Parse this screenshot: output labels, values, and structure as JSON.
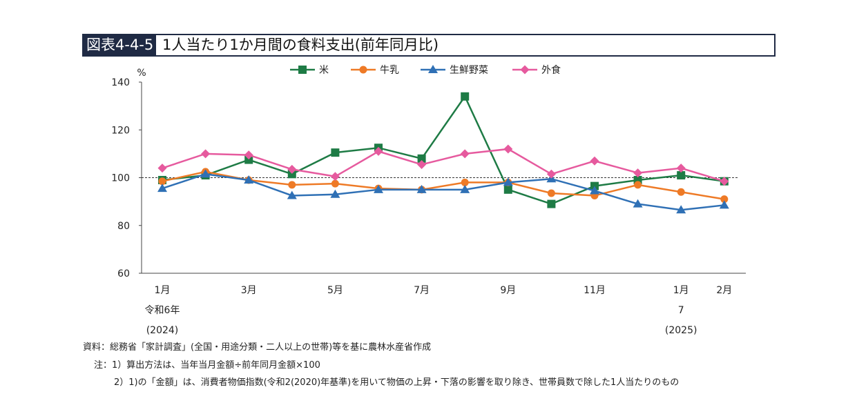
{
  "title": {
    "label": "図表4-4-5",
    "text": "1人当たり1か月間の食料支出(前年同月比)"
  },
  "chart_data": {
    "type": "line",
    "ylabel": "%",
    "ylim": [
      60,
      140
    ],
    "yticks": [
      60,
      80,
      100,
      120,
      140
    ],
    "reference_line": 100,
    "legend_position": "top",
    "x_tick_labels": [
      {
        "index": 0,
        "lines": [
          "1月",
          "令和6年",
          "(2024)"
        ]
      },
      {
        "index": 2,
        "lines": [
          "3月"
        ]
      },
      {
        "index": 4,
        "lines": [
          "5月"
        ]
      },
      {
        "index": 6,
        "lines": [
          "7月"
        ]
      },
      {
        "index": 8,
        "lines": [
          "9月"
        ]
      },
      {
        "index": 10,
        "lines": [
          "11月"
        ]
      },
      {
        "index": 12,
        "lines": [
          "1月",
          "7",
          "(2025)"
        ]
      },
      {
        "index": 13,
        "lines": [
          "2月"
        ]
      }
    ],
    "categories": [
      "2024-01",
      "2024-02",
      "2024-03",
      "2024-04",
      "2024-05",
      "2024-06",
      "2024-07",
      "2024-08",
      "2024-09",
      "2024-10",
      "2024-11",
      "2024-12",
      "2025-01",
      "2025-02"
    ],
    "series": [
      {
        "name": "米",
        "color": "#1e7b45",
        "marker": "square",
        "values": [
          99,
          101,
          107.5,
          101.5,
          110.5,
          112.5,
          108,
          134,
          95,
          89,
          96.5,
          99,
          101,
          98.5
        ]
      },
      {
        "name": "牛乳",
        "color": "#ee7a26",
        "marker": "circle",
        "values": [
          98.5,
          102.5,
          99,
          97,
          97.5,
          95.5,
          95,
          98,
          98,
          93.5,
          92.5,
          97,
          94,
          91
        ]
      },
      {
        "name": "生鮮野菜",
        "color": "#2f70b5",
        "marker": "triangle",
        "values": [
          95.5,
          101.5,
          99,
          92.5,
          93,
          95,
          95,
          95,
          98,
          99.5,
          94.5,
          89,
          86.5,
          88.5
        ]
      },
      {
        "name": "外食",
        "color": "#e65a9e",
        "marker": "diamond",
        "values": [
          104,
          110,
          109.5,
          103.5,
          100.5,
          111,
          105.5,
          110,
          112,
          101.5,
          107,
          102,
          104,
          98.5
        ]
      }
    ]
  },
  "notes": {
    "source": "資料：総務省「家計調査」(全国・用途分類・二人以上の世帯)等を基に農林水産省作成",
    "note1": "注：1）算出方法は、当年当月金額÷前年同月金額×100",
    "note2": "2）1)の「金額」は、消費者物価指数(令和2(2020)年基準)を用いて物価の上昇・下落の影響を取り除き、世帯員数で除した1人当たりのもの"
  }
}
